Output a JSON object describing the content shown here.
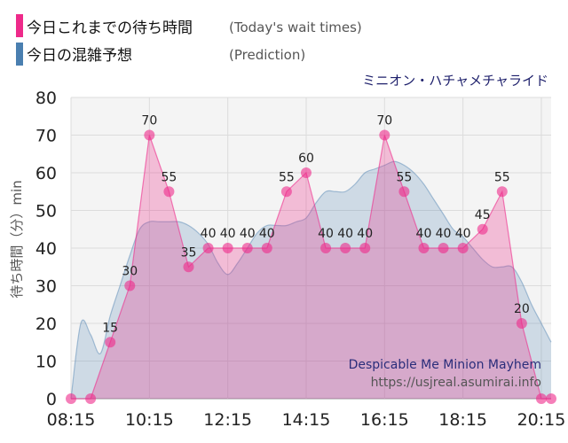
{
  "legend": {
    "today_label": "今日これまでの待ち時間",
    "today_sub": "(Today's wait times)",
    "today_color": "#ee2a8a",
    "pred_label": "今日の混雑予想",
    "pred_sub": "(Prediction)",
    "pred_color": "#4a7fb0"
  },
  "subtitle": "ミニオン・ハチャメチャライド",
  "watermark": {
    "line1": "Despicable Me Minion Mayhem",
    "line2": "https://usjreal.asumirai.info"
  },
  "chart_data": {
    "type": "area",
    "ylabel": "待ち時間（分）min",
    "ylim": [
      0,
      80
    ],
    "yticks": [
      0,
      10,
      20,
      30,
      40,
      50,
      60,
      70,
      80
    ],
    "xticks": [
      "08:15",
      "10:15",
      "12:15",
      "14:15",
      "16:15",
      "18:15",
      "20:15"
    ],
    "xrange": [
      "08:15",
      "20:30"
    ],
    "grid": true,
    "series": [
      {
        "name": "今日これまでの待ち時間",
        "color": "#ee2a8a",
        "x": [
          "08:15",
          "08:45",
          "09:15",
          "09:45",
          "10:15",
          "10:45",
          "11:15",
          "11:45",
          "12:15",
          "12:45",
          "13:15",
          "13:45",
          "14:15",
          "14:45",
          "15:15",
          "15:45",
          "16:15",
          "16:45",
          "17:15",
          "17:45",
          "18:15",
          "18:45",
          "19:15",
          "19:45",
          "20:15",
          "20:30"
        ],
        "values": [
          0,
          0,
          15,
          30,
          70,
          55,
          35,
          40,
          40,
          40,
          40,
          55,
          60,
          40,
          40,
          40,
          70,
          55,
          40,
          40,
          40,
          45,
          55,
          20,
          0,
          0
        ]
      },
      {
        "name": "今日の混雑予想",
        "color": "#4a7fb0",
        "x": [
          "08:15",
          "08:30",
          "08:45",
          "09:00",
          "09:15",
          "09:30",
          "09:45",
          "10:00",
          "10:15",
          "10:30",
          "10:45",
          "11:00",
          "11:15",
          "11:30",
          "11:45",
          "12:00",
          "12:15",
          "12:30",
          "12:45",
          "13:00",
          "13:15",
          "13:30",
          "13:45",
          "14:00",
          "14:15",
          "14:30",
          "14:45",
          "15:00",
          "15:15",
          "15:30",
          "15:45",
          "16:00",
          "16:15",
          "16:30",
          "16:45",
          "17:00",
          "17:15",
          "17:30",
          "17:45",
          "18:00",
          "18:15",
          "18:30",
          "18:45",
          "19:00",
          "19:15",
          "19:30",
          "19:45",
          "20:00",
          "20:15",
          "20:30"
        ],
        "values": [
          0,
          20,
          17,
          12,
          22,
          30,
          38,
          45,
          47,
          47,
          47,
          47,
          46,
          44,
          41,
          36,
          33,
          36,
          40,
          44,
          46,
          46,
          46,
          47,
          48,
          52,
          55,
          55,
          55,
          57,
          60,
          61,
          62,
          63,
          62,
          60,
          57,
          53,
          49,
          45,
          43,
          40,
          37,
          35,
          35,
          35,
          31,
          25,
          20,
          15
        ]
      }
    ]
  }
}
